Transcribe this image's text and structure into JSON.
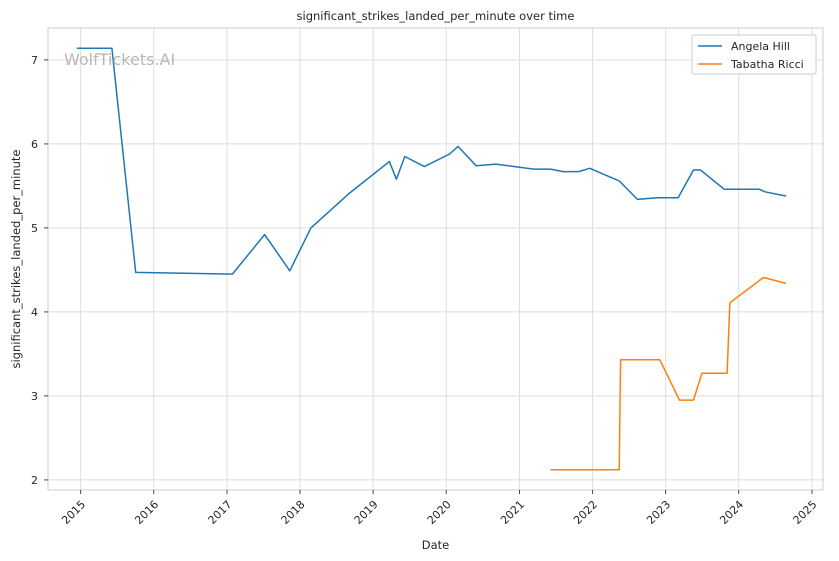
{
  "chart_data": {
    "type": "line",
    "title": "significant_strikes_landed_per_minute over time",
    "xlabel": "Date",
    "ylabel": "significant_strikes_landed_per_minute",
    "watermark": "WolfTickets.AI",
    "x_ticks": [
      "2015",
      "2016",
      "2017",
      "2018",
      "2019",
      "2020",
      "2021",
      "2022",
      "2023",
      "2024",
      "2025"
    ],
    "y_ticks": [
      "2",
      "3",
      "4",
      "5",
      "6",
      "7"
    ],
    "xlim": [
      "2014-07-22",
      "2025-02-25"
    ],
    "ylim": [
      1.88,
      7.38
    ],
    "grid": true,
    "legend_position": "top-right",
    "series": [
      {
        "name": "Angela Hill",
        "color": "#1f77b4",
        "points": [
          [
            "2014-12-13",
            7.14
          ],
          [
            "2015-06-06",
            7.14
          ],
          [
            "2015-10-03",
            4.47
          ],
          [
            "2017-01-28",
            4.45
          ],
          [
            "2017-07-08",
            4.92
          ],
          [
            "2017-11-11",
            4.49
          ],
          [
            "2018-02-24",
            5.0
          ],
          [
            "2018-09-08",
            5.42
          ],
          [
            "2019-03-23",
            5.79
          ],
          [
            "2019-04-27",
            5.58
          ],
          [
            "2019-06-08",
            5.85
          ],
          [
            "2019-09-14",
            5.73
          ],
          [
            "2020-01-18",
            5.88
          ],
          [
            "2020-02-29",
            5.97
          ],
          [
            "2020-05-30",
            5.74
          ],
          [
            "2020-09-05",
            5.76
          ],
          [
            "2021-03-13",
            5.7
          ],
          [
            "2021-06-05",
            5.7
          ],
          [
            "2021-08-07",
            5.67
          ],
          [
            "2021-10-23",
            5.67
          ],
          [
            "2021-12-18",
            5.71
          ],
          [
            "2022-05-14",
            5.56
          ],
          [
            "2022-08-13",
            5.34
          ],
          [
            "2022-11-19",
            5.36
          ],
          [
            "2023-03-04",
            5.36
          ],
          [
            "2023-05-20",
            5.69
          ],
          [
            "2023-06-24",
            5.69
          ],
          [
            "2023-10-21",
            5.46
          ],
          [
            "2024-04-13",
            5.46
          ],
          [
            "2024-05-11",
            5.43
          ],
          [
            "2024-08-24",
            5.38
          ]
        ]
      },
      {
        "name": "Tabatha Ricci",
        "color": "#ff7f0e",
        "points": [
          [
            "2021-06-05",
            2.12
          ],
          [
            "2022-05-14",
            2.12
          ],
          [
            "2022-05-21",
            3.43
          ],
          [
            "2022-12-03",
            3.43
          ],
          [
            "2023-03-11",
            2.95
          ],
          [
            "2023-05-20",
            2.95
          ],
          [
            "2023-07-01",
            3.27
          ],
          [
            "2023-11-04",
            3.27
          ],
          [
            "2023-11-18",
            4.11
          ],
          [
            "2024-05-04",
            4.41
          ],
          [
            "2024-08-24",
            4.34
          ]
        ]
      }
    ]
  }
}
